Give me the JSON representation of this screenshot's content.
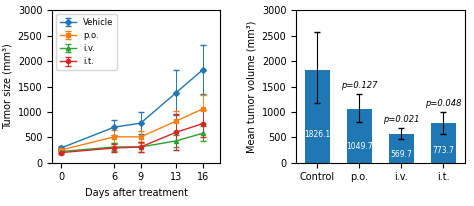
{
  "chart_data": [
    {
      "type": "line",
      "x": [
        0,
        6,
        9,
        13,
        16
      ],
      "xlim": [
        -1,
        18
      ],
      "xticks": [
        0,
        6,
        9,
        13,
        16
      ],
      "ylim": [
        0,
        3000
      ],
      "yticks": [
        0,
        500,
        1000,
        1500,
        2000,
        2500,
        3000
      ],
      "xlabel": "Days after treatment",
      "ylabel": "Tumor size (mm³)",
      "legend": "upper left",
      "series": [
        {
          "name": "Vehicle",
          "marker": "diamond",
          "values": [
            290,
            700,
            780,
            1380,
            1830
          ],
          "errors": [
            30,
            150,
            220,
            450,
            480
          ]
        },
        {
          "name": "p.o.",
          "marker": "square",
          "values": [
            250,
            510,
            510,
            820,
            1060
          ],
          "errors": [
            30,
            130,
            120,
            200,
            280
          ]
        },
        {
          "name": "i.v.",
          "marker": "triangle",
          "values": [
            220,
            310,
            310,
            430,
            580
          ],
          "errors": [
            25,
            80,
            100,
            120,
            150
          ]
        },
        {
          "name": "i.t.",
          "marker": "circle",
          "values": [
            200,
            290,
            310,
            600,
            770
          ],
          "errors": [
            25,
            80,
            90,
            350,
            260
          ]
        }
      ]
    },
    {
      "type": "bar",
      "categories": [
        "Control",
        "p.o.",
        "i.v.",
        "i.t."
      ],
      "values": [
        1826.1,
        1049.7,
        569.7,
        773.7
      ],
      "errors_upper": [
        750,
        300,
        120,
        230
      ],
      "errors_lower": [
        650,
        250,
        100,
        200
      ],
      "data_labels": true,
      "ylim": [
        0,
        3000
      ],
      "yticks": [
        0,
        500,
        1000,
        1500,
        2000,
        2500,
        3000
      ],
      "ylabel": "Mean tumor volume (mm³)",
      "annotations": [
        {
          "category": "p.o.",
          "text": "p=0.127"
        },
        {
          "category": "i.v.",
          "text": "p=0.021"
        },
        {
          "category": "i.t.",
          "text": "p=0.048"
        }
      ]
    }
  ]
}
